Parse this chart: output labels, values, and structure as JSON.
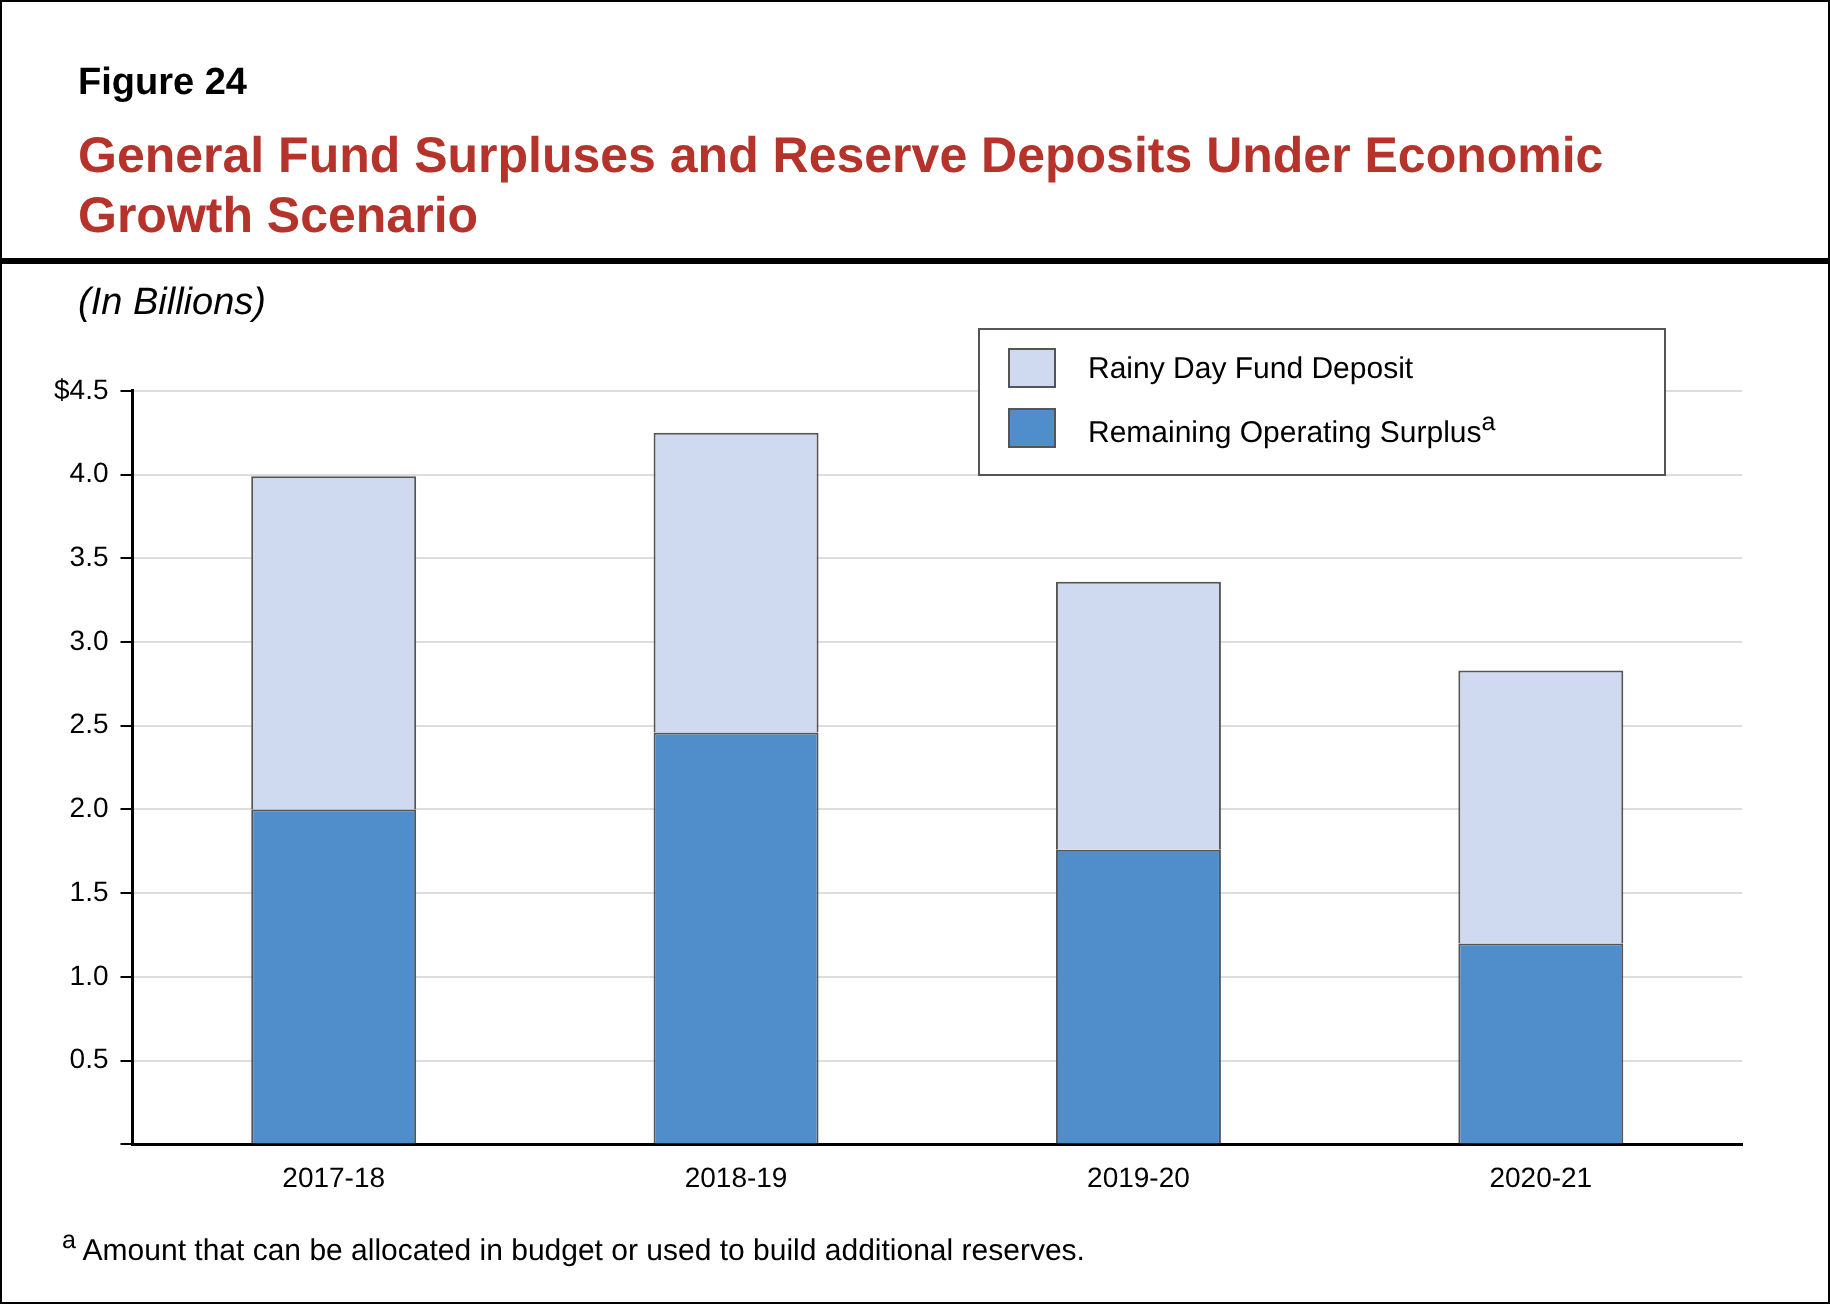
{
  "chart_data": {
    "type": "bar",
    "title": "General Fund Surpluses and Reserve Deposits Under Economic Growth Scenario",
    "subtitle": "Figure 24",
    "ylabel": "(In Billions)",
    "categories": [
      "2017-18",
      "2018-19",
      "2019-20",
      "2020-21"
    ],
    "stacked": true,
    "series": [
      {
        "name": "Remaining Operating Surplus$^{a}$",
        "color": "#4f8ecb",
        "values": [
          2.0,
          2.46,
          1.76,
          1.2
        ]
      },
      {
        "name": "Rainy Day Fund Deposit",
        "color": "#cfd9ef",
        "values": [
          1.99,
          1.79,
          1.6,
          1.63
        ]
      }
    ],
    "ylim": [
      0,
      4.5
    ],
    "yticks": [
      {
        "value": 0,
        "label": null
      },
      0.5,
      {
        "value": 1,
        "label": "1.0"
      },
      1.5,
      {
        "value": 2,
        "label": "2.0"
      },
      2.5,
      {
        "value": 3,
        "label": "3.0"
      },
      3.5,
      {
        "value": 4,
        "label": "4.0"
      },
      {
        "value": 4.5,
        "label": "$4.5"
      }
    ],
    "grid": "y",
    "legend": "top right",
    "annotations": [
      "$^{a}$ Amount that can be allocated in budget or used to build additional reserves."
    ]
  }
}
